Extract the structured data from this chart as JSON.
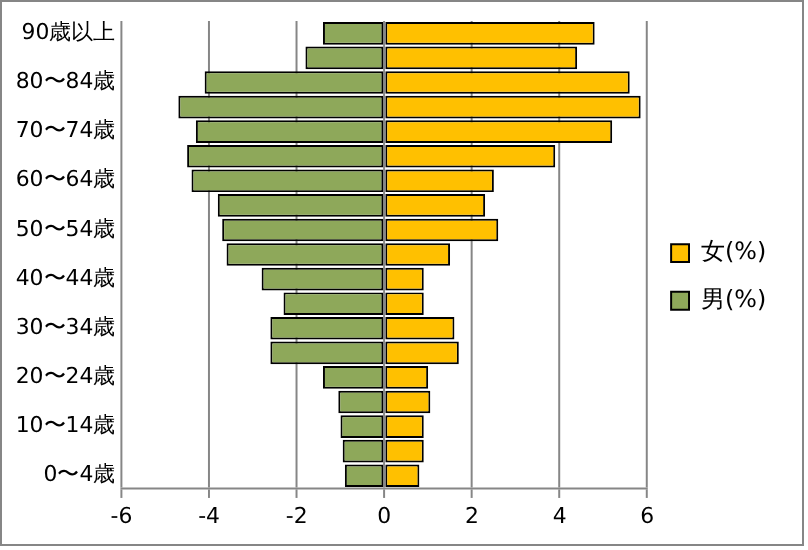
{
  "chart_data": {
    "type": "bar",
    "orientation": "horizontal",
    "stacked": true,
    "categories": [
      "90歳以上",
      null,
      "80〜84歳",
      null,
      "70〜74歳",
      null,
      "60〜64歳",
      null,
      "50〜54歳",
      null,
      "40〜44歳",
      null,
      "30〜34歳",
      null,
      "20〜24歳",
      null,
      "10〜14歳",
      null,
      "0〜4歳"
    ],
    "series": [
      {
        "name": "女(%)",
        "color": "#ffc000",
        "values": [
          4.8,
          4.4,
          5.6,
          5.85,
          5.2,
          3.9,
          2.5,
          2.3,
          2.6,
          1.5,
          0.9,
          0.9,
          1.6,
          1.7,
          1.0,
          1.05,
          0.9,
          0.9,
          0.8
        ]
      },
      {
        "name": "男(%)",
        "color": "#8ea85a",
        "values": [
          -1.4,
          -1.8,
          -4.1,
          -4.7,
          -4.3,
          -4.5,
          -4.4,
          -3.8,
          -3.7,
          -3.6,
          -2.8,
          -2.3,
          -2.6,
          -2.6,
          -1.4,
          -1.05,
          -1.0,
          -0.95,
          -0.9
        ]
      }
    ],
    "xlim": [
      -6,
      6
    ],
    "xticks": [
      -6,
      -4,
      -2,
      0,
      2,
      4,
      6
    ],
    "grid": "x",
    "legend": "right"
  }
}
